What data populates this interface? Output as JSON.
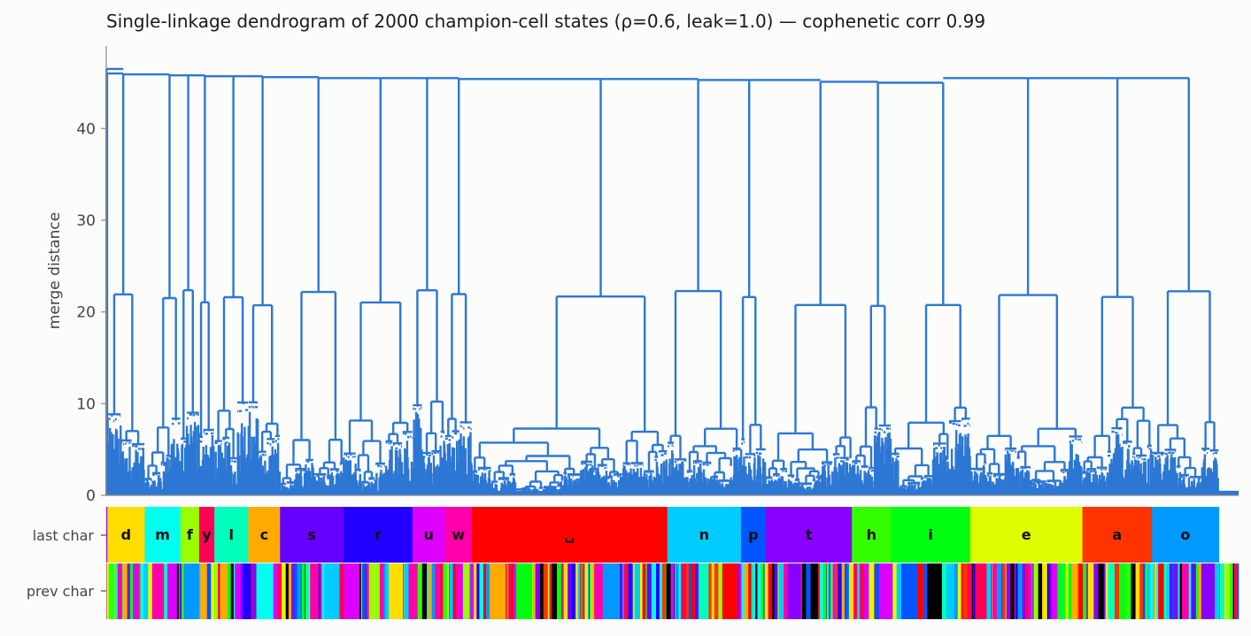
{
  "chart_data": {
    "type": "dendrogram",
    "title": "Single-linkage dendrogram of 2000 champion-cell states (ρ=0.6, leak=1.0) — cophenetic corr 0.99",
    "ylabel": "merge distance",
    "xlabel": "",
    "ylim": [
      0,
      49
    ],
    "yticks": [
      "0",
      "10",
      "20",
      "30",
      "40"
    ],
    "yticks_values": [
      0,
      10,
      20,
      30,
      40
    ],
    "leaf_count": 2000,
    "line_color": "#2c77d4",
    "grid": false,
    "leaf_groups": [
      {
        "char": "d",
        "size": 66,
        "merge_height": 45.9,
        "color": "#ffdd00"
      },
      {
        "char": "m",
        "size": 63,
        "merge_height": 45.8,
        "color": "#00ffee"
      },
      {
        "char": "f",
        "size": 33,
        "merge_height": 45.8,
        "color": "#99ff00"
      },
      {
        "char": "y",
        "size": 27,
        "merge_height": 45.7,
        "color": "#ff0055"
      },
      {
        "char": "l",
        "size": 60,
        "merge_height": 45.7,
        "color": "#00ffbb"
      },
      {
        "char": "c",
        "size": 56,
        "merge_height": 45.6,
        "color": "#ffaa00"
      },
      {
        "char": "s",
        "size": 112,
        "merge_height": 45.5,
        "color": "#6600ff"
      },
      {
        "char": "r",
        "size": 122,
        "merge_height": 45.4,
        "color": "#2200ff"
      },
      {
        "char": "u",
        "size": 57,
        "merge_height": 45.5,
        "color": "#dd00ff"
      },
      {
        "char": "w",
        "size": 48,
        "merge_height": 45.4,
        "color": "#ff00aa"
      },
      {
        "char": "␣",
        "size": 345,
        "merge_height": 45.4,
        "color": "#ff0000"
      },
      {
        "char": "n",
        "size": 130,
        "merge_height": 45.3,
        "color": "#00ccff"
      },
      {
        "char": "p",
        "size": 44,
        "merge_height": 45.3,
        "color": "#0055ff"
      },
      {
        "char": "t",
        "size": 152,
        "merge_height": 45.1,
        "color": "#8800ff"
      },
      {
        "char": "h",
        "size": 69,
        "merge_height": 45.0,
        "color": "#33ff00"
      },
      {
        "char": "i",
        "size": 140,
        "merge_height": 45.0,
        "color": "#00ff11"
      },
      {
        "char": "e",
        "size": 198,
        "merge_height": 45.5,
        "color": "#ddff00"
      },
      {
        "char": "a",
        "size": 123,
        "merge_height": 45.5,
        "color": "#ff3300"
      },
      {
        "char": "o",
        "size": 118,
        "merge_height": 45.5,
        "color": "#0099ff"
      }
    ],
    "tracks": [
      {
        "label": "last char"
      },
      {
        "label": "prev char"
      }
    ],
    "prev_char_palette": [
      "#ff0000",
      "#00ff11",
      "#2200ff",
      "#ddff00",
      "#00ccff",
      "#8800ff",
      "#ff3300",
      "#0099ff",
      "#33ff00",
      "#ff00aa",
      "#ffaa00",
      "#6600ff",
      "#00ffbb",
      "#ff0055",
      "#ffdd00",
      "#dd00ff",
      "#0055ff",
      "#99ff00",
      "#00ffee",
      "#000000"
    ]
  }
}
